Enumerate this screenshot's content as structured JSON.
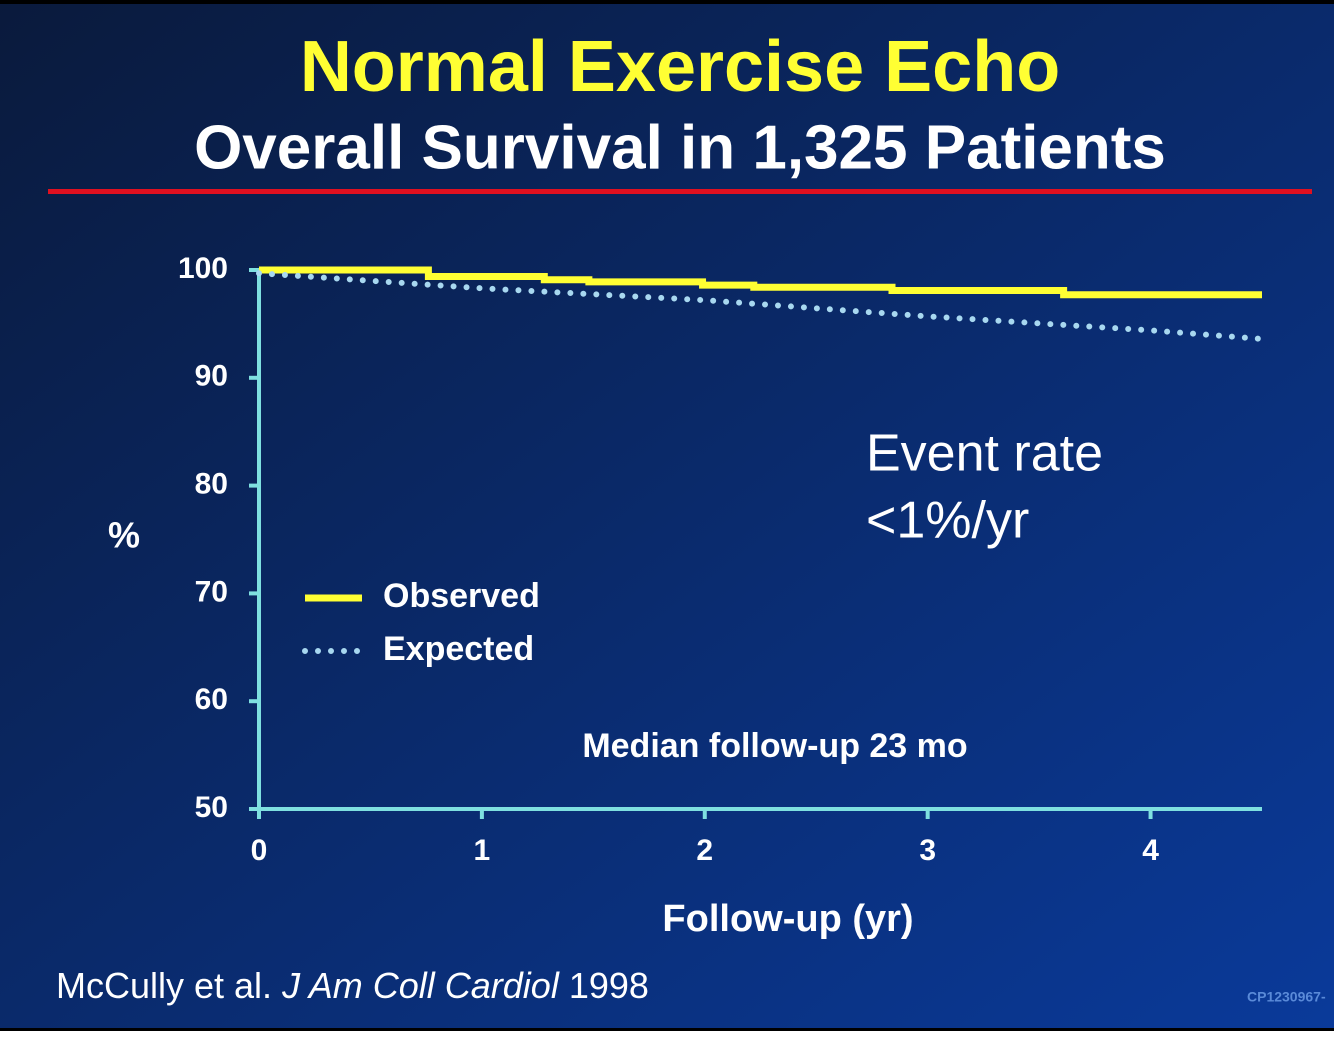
{
  "chart_data": {
    "type": "line",
    "title": "Normal Exercise Echo",
    "subtitle": "Overall Survival in 1,325 Patients",
    "xlabel": "Follow-up (yr)",
    "ylabel": "%",
    "xlim": [
      0,
      4.5
    ],
    "xticks": [
      0,
      1,
      2,
      3,
      4
    ],
    "ylim": [
      50,
      100
    ],
    "yticks": [
      50,
      60,
      70,
      80,
      90,
      100
    ],
    "grid": false,
    "legend": "left",
    "series": [
      {
        "name": "Observed",
        "color": "#ffff33",
        "style": "solid",
        "x": [
          0,
          0.76,
          0.76,
          1.28,
          1.28,
          1.48,
          1.48,
          1.99,
          1.99,
          2.22,
          2.22,
          2.84,
          2.84,
          3.61,
          3.61,
          4.5
        ],
        "values": [
          100,
          100,
          99.4,
          99.4,
          99.1,
          99.1,
          98.9,
          98.9,
          98.6,
          98.6,
          98.4,
          98.4,
          98.1,
          98.1,
          97.7,
          97.7
        ]
      },
      {
        "name": "Expected",
        "color": "#a8d8f0",
        "style": "dotted",
        "x": [
          0,
          1,
          2,
          3,
          4,
          4.5
        ],
        "values": [
          99.7,
          98.3,
          97.2,
          95.7,
          94.4,
          93.6
        ]
      }
    ],
    "annotations": [
      "Event rate",
      "<1%/yr",
      "Median follow-up 23 mo"
    ],
    "citation": {
      "authors": "McCully et al.",
      "journal": "J Am Coll Cardiol",
      "year": "1998"
    },
    "slide_code": "CP1230967-"
  }
}
